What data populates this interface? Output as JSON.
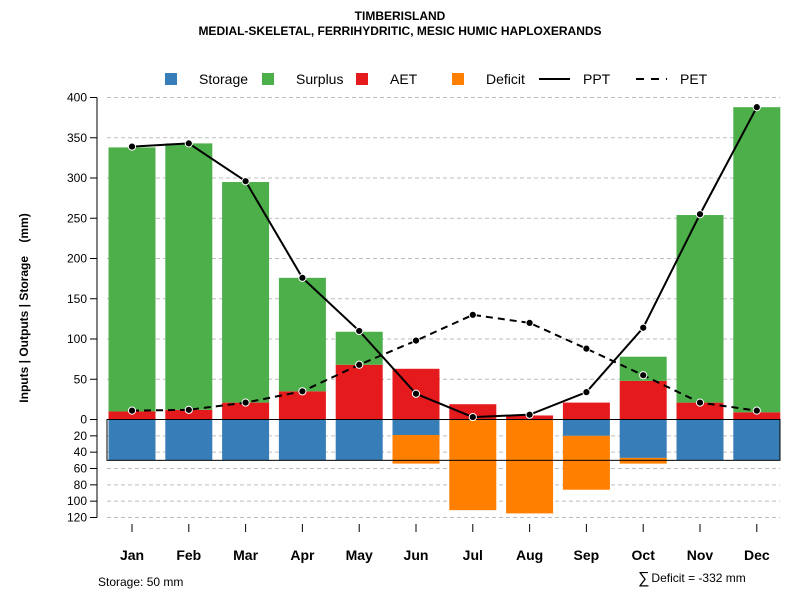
{
  "title": "TIMBERISLAND",
  "subtitle": "MEDIAL-SKELETAL, FERRIHYDRITIC, MESIC HUMIC HAPLOXERANDS",
  "footer": {
    "storage_label": "Storage: 50 mm",
    "deficit_symbol": "∑",
    "deficit_label": "Deficit = -332 mm"
  },
  "colors": {
    "storage": "#377EB8",
    "surplus": "#4DAF4A",
    "aet": "#E41A1C",
    "deficit": "#FF7F00",
    "line": "#000000",
    "grid": "#BEBEBE"
  },
  "chart_data": {
    "type": "bar",
    "title": "TIMBERISLAND",
    "subtitle": "MEDIAL-SKELETAL, FERRIHYDRITIC, MESIC HUMIC HAPLOXERANDS",
    "ylabel": "Inputs | Outputs | Storage    (mm)",
    "xlabel": "",
    "categories": [
      "Jan",
      "Feb",
      "Mar",
      "Apr",
      "May",
      "Jun",
      "Jul",
      "Aug",
      "Sep",
      "Oct",
      "Nov",
      "Dec"
    ],
    "ylim_top": [
      0,
      400
    ],
    "ylim_bottom": [
      0,
      120
    ],
    "yticks_top": [
      "0",
      "50",
      "100",
      "150",
      "200",
      "250",
      "300",
      "350",
      "400"
    ],
    "yticks_bottom": [
      "0",
      "20",
      "40",
      "60",
      "80",
      "100",
      "120"
    ],
    "legend": [
      {
        "name": "Storage",
        "kind": "square",
        "color": "#377EB8"
      },
      {
        "name": "Surplus",
        "kind": "square",
        "color": "#4DAF4A"
      },
      {
        "name": "AET",
        "kind": "square",
        "color": "#E41A1C"
      },
      {
        "name": "Deficit",
        "kind": "square",
        "color": "#FF7F00"
      },
      {
        "name": "PPT",
        "kind": "solid",
        "color": "#000000"
      },
      {
        "name": "PET",
        "kind": "dashed",
        "color": "#000000"
      }
    ],
    "series": [
      {
        "name": "AET",
        "values": [
          10,
          12,
          21,
          35,
          68,
          63,
          19,
          5,
          21,
          48,
          21,
          9
        ]
      },
      {
        "name": "Surplus",
        "values": [
          328,
          331,
          274,
          141,
          41,
          0,
          0,
          0,
          0,
          30,
          233,
          379
        ]
      },
      {
        "name": "Storage",
        "values": [
          50,
          50,
          50,
          50,
          50,
          19,
          0,
          0,
          20,
          47,
          50,
          50
        ]
      },
      {
        "name": "Deficit",
        "values": [
          0,
          0,
          0,
          0,
          0,
          35,
          111,
          115,
          66,
          7,
          0,
          0
        ]
      },
      {
        "name": "PPT",
        "values": [
          339,
          343,
          296,
          176,
          110,
          32,
          3,
          6,
          34,
          114,
          255,
          388
        ]
      },
      {
        "name": "PET",
        "values": [
          11,
          12,
          21,
          35,
          68,
          98,
          130,
          120,
          88,
          55,
          21,
          11
        ]
      }
    ],
    "storage_capacity": 50
  }
}
